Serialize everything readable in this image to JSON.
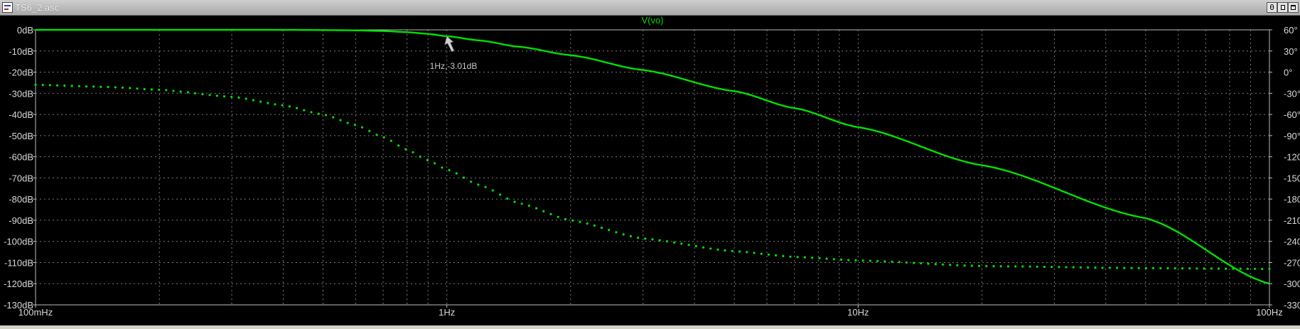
{
  "window": {
    "title": "TS6_2.asc",
    "buttons": {
      "minimize": "0",
      "restore": "1",
      "close": ""
    }
  },
  "colors": {
    "background": "#000000",
    "trace": "#00e000",
    "grid": "#7a7a7a",
    "axis_text": "#d8d8d8",
    "cursor_label": "#c8c8c8"
  },
  "chart_data": {
    "type": "line",
    "title": "V(vo)",
    "x_scale": "log",
    "x_range": [
      0.1,
      100
    ],
    "x_ticks": [
      {
        "value": 0.1,
        "label": "100mHz"
      },
      {
        "value": 1,
        "label": "1Hz"
      },
      {
        "value": 10,
        "label": "10Hz"
      },
      {
        "value": 100,
        "label": "100Hz"
      }
    ],
    "y_left": {
      "range": [
        -130,
        0
      ],
      "unit": "dB",
      "ticks": [
        {
          "value": 0,
          "label": "0dB"
        },
        {
          "value": -10,
          "label": "-10dB"
        },
        {
          "value": -20,
          "label": "-20dB"
        },
        {
          "value": -30,
          "label": "-30dB"
        },
        {
          "value": -40,
          "label": "-40dB"
        },
        {
          "value": -50,
          "label": "-50dB"
        },
        {
          "value": -60,
          "label": "-60dB"
        },
        {
          "value": -70,
          "label": "-70dB"
        },
        {
          "value": -80,
          "label": "-80dB"
        },
        {
          "value": -90,
          "label": "-90dB"
        },
        {
          "value": -100,
          "label": "-100dB"
        },
        {
          "value": -110,
          "label": "-110dB"
        },
        {
          "value": -120,
          "label": "-120dB"
        },
        {
          "value": -130,
          "label": "-130dB"
        }
      ]
    },
    "y_right": {
      "range": [
        -330,
        60
      ],
      "unit": "°",
      "ticks": [
        {
          "value": 60,
          "label": "60°"
        },
        {
          "value": 30,
          "label": "30°"
        },
        {
          "value": 0,
          "label": "0°"
        },
        {
          "value": -30,
          "label": "-30°"
        },
        {
          "value": -60,
          "label": "-60°"
        },
        {
          "value": -90,
          "label": "-90°"
        },
        {
          "value": -120,
          "label": "-120°"
        },
        {
          "value": -150,
          "label": "-150°"
        },
        {
          "value": -180,
          "label": "-180°"
        },
        {
          "value": -210,
          "label": "-210°"
        },
        {
          "value": -240,
          "label": "-240°"
        },
        {
          "value": -270,
          "label": "-270°"
        },
        {
          "value": -300,
          "label": "-300°"
        },
        {
          "value": -330,
          "label": "-330°"
        }
      ]
    },
    "grid": true,
    "series": [
      {
        "name": "V(vo)",
        "axis": "left",
        "style": "solid",
        "x": [
          0.1,
          0.2,
          0.3,
          0.4,
          0.5,
          0.6,
          0.7,
          0.8,
          0.9,
          1,
          1.2,
          1.5,
          2,
          3,
          5,
          7,
          10,
          20,
          50,
          100
        ],
        "y": [
          0,
          0,
          0,
          -0.02,
          -0.1,
          -0.25,
          -0.55,
          -1.1,
          -1.9,
          -3.01,
          -5,
          -8,
          -12,
          -19,
          -29,
          -37,
          -46,
          -64,
          -89,
          -120
        ]
      },
      {
        "name": "",
        "axis": "right",
        "style": "dotted",
        "x": [
          0.1,
          0.15,
          0.2,
          0.3,
          0.4,
          0.5,
          0.6,
          0.7,
          0.8,
          0.9,
          1,
          1.2,
          1.5,
          2,
          3,
          5,
          7,
          10,
          20,
          50,
          100
        ],
        "y": [
          -18,
          -21,
          -25,
          -35,
          -47,
          -60,
          -75,
          -92,
          -110,
          -125,
          -138,
          -160,
          -186,
          -210,
          -236,
          -254,
          -262,
          -267,
          -275,
          -278,
          -279
        ]
      }
    ],
    "annotations": [
      {
        "x": 1,
        "y": -3.01,
        "label": "1Hz,-3.01dB"
      }
    ]
  }
}
